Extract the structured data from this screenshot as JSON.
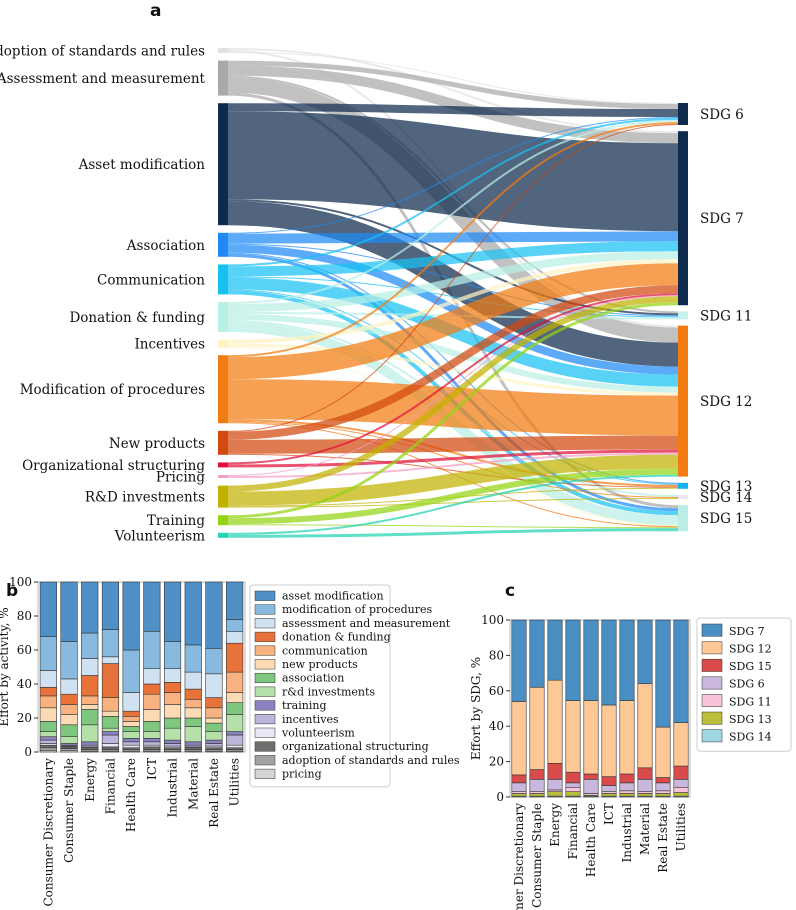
{
  "chart_data": [
    {
      "type": "sankey",
      "panel": "a",
      "sources": [
        {
          "name": "Adoption of standards and rules",
          "color": "#e2e2e2",
          "value": 5
        },
        {
          "name": "Assessment and measurement",
          "color": "#a9a9a9",
          "value": 35
        },
        {
          "name": "Asset modification",
          "color": "#0e2a4c",
          "value": 122
        },
        {
          "name": "Association",
          "color": "#1f8af5",
          "value": 24
        },
        {
          "name": "Communication",
          "color": "#18c0f2",
          "value": 30
        },
        {
          "name": "Donation & funding",
          "color": "#b9f0e6",
          "value": 30
        },
        {
          "name": "Incentives",
          "color": "#fff3c4",
          "value": 8
        },
        {
          "name": "Modification of procedures",
          "color": "#f27c12",
          "value": 68
        },
        {
          "name": "New products",
          "color": "#d2480e",
          "value": 24
        },
        {
          "name": "Organizational structuring",
          "color": "#e0103c",
          "value": 5
        },
        {
          "name": "Pricing",
          "color": "#f3a0c8",
          "value": 3
        },
        {
          "name": "R&D investments",
          "color": "#c2b200",
          "value": 22
        },
        {
          "name": "Training",
          "color": "#94d414",
          "value": 10
        },
        {
          "name": "Volunteerism",
          "color": "#22d2b2",
          "value": 5
        }
      ],
      "targets": [
        {
          "name": "SDG 6",
          "color": "#0e2a4c"
        },
        {
          "name": "SDG 7",
          "color": "#0e2a4c"
        },
        {
          "name": "SDG 11",
          "color": "#c4f2f0"
        },
        {
          "name": "SDG 12",
          "color": "#f27c12"
        },
        {
          "name": "SDG 13",
          "color": "#12b2f2"
        },
        {
          "name": "SDG 14",
          "color": "#e6e8f6"
        },
        {
          "name": "SDG 15",
          "color": "#bcece6"
        }
      ],
      "flows": [
        [
          0,
          1,
          2
        ],
        [
          0,
          3,
          2
        ],
        [
          0,
          0,
          1
        ],
        [
          1,
          0,
          5
        ],
        [
          1,
          1,
          10
        ],
        [
          1,
          2,
          2
        ],
        [
          1,
          3,
          15
        ],
        [
          1,
          6,
          3
        ],
        [
          2,
          0,
          8
        ],
        [
          2,
          1,
          88
        ],
        [
          2,
          2,
          2
        ],
        [
          2,
          3,
          24
        ],
        [
          3,
          0,
          1
        ],
        [
          3,
          1,
          10
        ],
        [
          3,
          2,
          1
        ],
        [
          3,
          3,
          8
        ],
        [
          3,
          4,
          1
        ],
        [
          3,
          6,
          3
        ],
        [
          4,
          0,
          2
        ],
        [
          4,
          1,
          10
        ],
        [
          4,
          2,
          1
        ],
        [
          4,
          3,
          12
        ],
        [
          4,
          4,
          1
        ],
        [
          4,
          6,
          4
        ],
        [
          5,
          0,
          2
        ],
        [
          5,
          1,
          8
        ],
        [
          5,
          2,
          2
        ],
        [
          5,
          3,
          6
        ],
        [
          5,
          5,
          2
        ],
        [
          5,
          6,
          10
        ],
        [
          6,
          1,
          4
        ],
        [
          6,
          3,
          3
        ],
        [
          6,
          6,
          1
        ],
        [
          7,
          0,
          2
        ],
        [
          7,
          1,
          22
        ],
        [
          7,
          3,
          40
        ],
        [
          7,
          4,
          2
        ],
        [
          7,
          5,
          1
        ],
        [
          7,
          6,
          1
        ],
        [
          8,
          0,
          1
        ],
        [
          8,
          1,
          8
        ],
        [
          8,
          3,
          14
        ],
        [
          8,
          4,
          1
        ],
        [
          9,
          1,
          2
        ],
        [
          9,
          3,
          3
        ],
        [
          10,
          1,
          1
        ],
        [
          10,
          3,
          2
        ],
        [
          11,
          1,
          6
        ],
        [
          11,
          3,
          14
        ],
        [
          11,
          4,
          1
        ],
        [
          11,
          5,
          1
        ],
        [
          12,
          1,
          3
        ],
        [
          12,
          3,
          6
        ],
        [
          12,
          6,
          1
        ],
        [
          13,
          3,
          2
        ],
        [
          13,
          6,
          3
        ]
      ]
    },
    {
      "type": "bar",
      "stacked": true,
      "panel": "b",
      "ylabel": "Effort by activity, %",
      "ylim": [
        0,
        100
      ],
      "yticks": [
        "0",
        "20",
        "40",
        "60",
        "80",
        "100"
      ],
      "categories": [
        "Consumer Discretionary",
        "Consumer Staple",
        "Energy",
        "Financial",
        "Health Care",
        "ICT",
        "Industrial",
        "Material",
        "Real Estate",
        "Utilities"
      ],
      "series": [
        {
          "name": "asset modification",
          "color": "#4f91c6",
          "values": [
            32,
            35,
            30,
            28,
            40,
            29,
            35,
            37,
            39,
            22
          ]
        },
        {
          "name": "modification of procedures",
          "color": "#88badf",
          "values": [
            20,
            22,
            15,
            16,
            25,
            22,
            16,
            16,
            15,
            7
          ]
        },
        {
          "name": "assessment and measurement",
          "color": "#d0e1f2",
          "values": [
            10,
            9,
            10,
            4,
            11,
            9,
            8,
            10,
            14,
            7
          ]
        },
        {
          "name": "donation & funding",
          "color": "#e8733a",
          "values": [
            5,
            6,
            12,
            20,
            3,
            6,
            6,
            6,
            6,
            17
          ]
        },
        {
          "name": "communication",
          "color": "#f8b27f",
          "values": [
            7,
            6,
            5,
            8,
            3,
            9,
            7,
            5,
            6,
            12
          ]
        },
        {
          "name": "new products",
          "color": "#fddab6",
          "values": [
            8,
            6,
            3,
            3,
            3,
            7,
            8,
            6,
            3,
            6
          ]
        },
        {
          "name": "association",
          "color": "#7fc67e",
          "values": [
            6,
            7,
            9,
            7,
            3,
            6,
            6,
            5,
            5,
            7
          ]
        },
        {
          "name": "r&d investments",
          "color": "#b5e1a8",
          "values": [
            3,
            4,
            10,
            2,
            4,
            4,
            7,
            9,
            5,
            10
          ]
        },
        {
          "name": "training",
          "color": "#8b80c1",
          "values": [
            2,
            1,
            2,
            2,
            2,
            2,
            2,
            2,
            2,
            2
          ]
        },
        {
          "name": "incentives",
          "color": "#bdb6dc",
          "values": [
            2,
            0.5,
            1,
            5,
            2,
            2,
            1.5,
            1,
            1.5,
            6
          ]
        },
        {
          "name": "volunteerism",
          "color": "#e9e7f3",
          "values": [
            1,
            0.5,
            0.5,
            2,
            1.5,
            1,
            1,
            0.5,
            1,
            1.5
          ]
        },
        {
          "name": "organizational structuring",
          "color": "#6e6e6e",
          "values": [
            1.5,
            1,
            1,
            1.5,
            1,
            1.5,
            1,
            1,
            1,
            1
          ]
        },
        {
          "name": "adoption of standards and rules",
          "color": "#a3a3a3",
          "values": [
            1.5,
            1,
            1,
            1,
            1,
            1,
            1,
            1,
            1,
            1
          ]
        },
        {
          "name": "pricing",
          "color": "#d4d4d4",
          "values": [
            1,
            1,
            0.5,
            0.5,
            0.5,
            0.5,
            0.5,
            0.5,
            0.5,
            0.5
          ]
        }
      ]
    },
    {
      "type": "bar",
      "stacked": true,
      "panel": "c",
      "ylabel": "Effort by SDG, %",
      "ylim": [
        0,
        100
      ],
      "yticks": [
        "0",
        "20",
        "40",
        "60",
        "80",
        "100"
      ],
      "categories": [
        "Consumer Discretionary",
        "Consumer Staple",
        "Energy",
        "Financial",
        "Health Care",
        "ICT",
        "Industrial",
        "Material",
        "Real Estate",
        "Utilities"
      ],
      "series": [
        {
          "name": "SDG 7",
          "color": "#4a8fc4",
          "values": [
            46,
            38,
            34,
            45.5,
            45.5,
            48,
            45.5,
            36,
            60.5,
            58
          ]
        },
        {
          "name": "SDG 12",
          "color": "#fdc894",
          "values": [
            41.5,
            46.5,
            47,
            40.5,
            41.5,
            40.5,
            41.5,
            47.5,
            28.5,
            24.5
          ]
        },
        {
          "name": "SDG 15",
          "color": "#d94a4a",
          "values": [
            4.5,
            5.5,
            9,
            6,
            3,
            5,
            5,
            6.5,
            3,
            7.5
          ]
        },
        {
          "name": "SDG 6",
          "color": "#cab7dd",
          "values": [
            5,
            7,
            6,
            2.5,
            8,
            3.5,
            4.5,
            7,
            4.5,
            4.5
          ]
        },
        {
          "name": "SDG 11",
          "color": "#f8c4dc",
          "values": [
            1,
            1,
            1,
            2.5,
            1,
            1,
            1.5,
            1,
            1.5,
            3
          ]
        },
        {
          "name": "SDG 13",
          "color": "#bcbd3a",
          "values": [
            1.5,
            1.5,
            2.5,
            2.5,
            0.5,
            1.5,
            1.5,
            1.5,
            1.5,
            2
          ]
        },
        {
          "name": "SDG 14",
          "color": "#9fd7e3",
          "values": [
            0.5,
            0.5,
            0.5,
            0.5,
            0.5,
            0.5,
            0.5,
            0.5,
            0.5,
            0.5
          ]
        }
      ]
    }
  ],
  "panel_labels": {
    "a": "a",
    "b": "b",
    "c": "c"
  }
}
